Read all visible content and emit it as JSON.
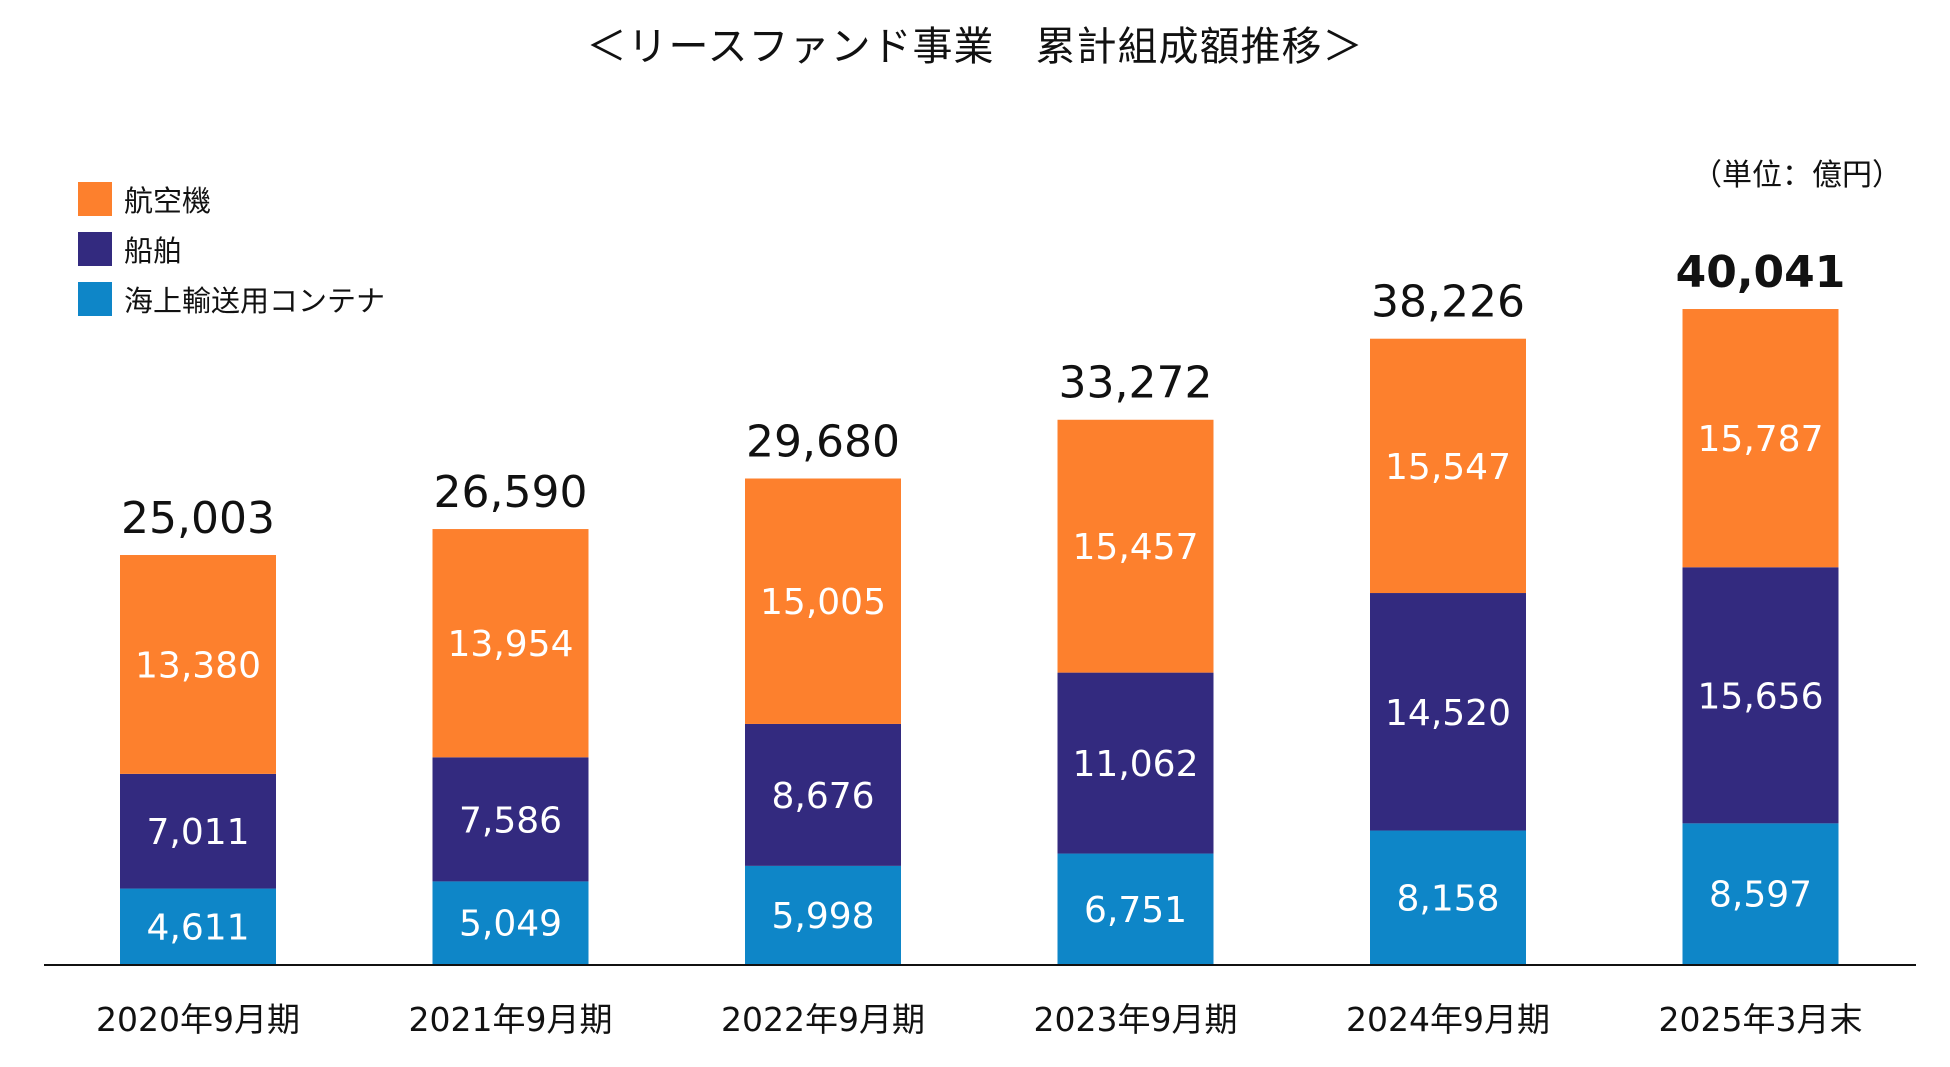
{
  "chart_data": {
    "type": "bar",
    "stacked": true,
    "title": "＜リースファンド事業　累計組成額推移＞",
    "unit_label": "（単位：億円）",
    "categories": [
      "2020年9月期",
      "2021年9月期",
      "2022年9月期",
      "2023年9月期",
      "2024年9月期",
      "2025年3月末"
    ],
    "series": [
      {
        "name": "海上輸送用コンテナ",
        "color": "#0e86c8",
        "values": [
          4611,
          5049,
          5998,
          6751,
          8158,
          8597
        ],
        "labels": [
          "4,611",
          "5,049",
          "5,998",
          "6,751",
          "8,158",
          "8,597"
        ]
      },
      {
        "name": "船舶",
        "color": "#332a7f",
        "values": [
          7011,
          7586,
          8676,
          11062,
          14520,
          15656
        ],
        "labels": [
          "7,011",
          "7,586",
          "8,676",
          "11,062",
          "14,520",
          "15,656"
        ]
      },
      {
        "name": "航空機",
        "color": "#fd802d",
        "values": [
          13380,
          13954,
          15005,
          15457,
          15547,
          15787
        ],
        "labels": [
          "13,380",
          "13,954",
          "15,005",
          "15,457",
          "15,547",
          "15,787"
        ]
      }
    ],
    "totals": [
      25003,
      26590,
      29680,
      33272,
      38226,
      40041
    ],
    "total_labels": [
      "25,003",
      "26,590",
      "29,680",
      "33,272",
      "38,226",
      "40,041"
    ],
    "highlight_last_total": true,
    "legend_order": [
      "航空機",
      "船舶",
      "海上輸送用コンテナ"
    ],
    "legend_position": "top-left",
    "ylim": [
      0,
      40041
    ],
    "grid": false
  }
}
